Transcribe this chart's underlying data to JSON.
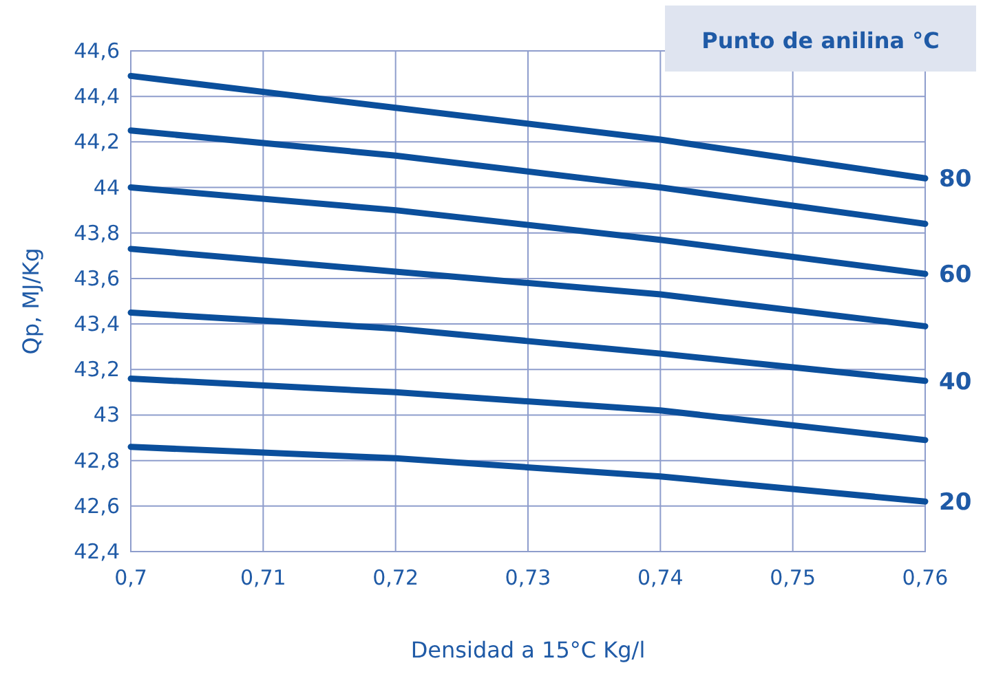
{
  "chart_data": {
    "type": "line",
    "legend_title": "Punto de anilina °C",
    "xlabel": "Densidad a 15°C Kg/l",
    "ylabel": "Qp, MJ/Kg",
    "x": [
      0.7,
      0.72,
      0.74,
      0.76
    ],
    "series": [
      {
        "name": "80",
        "color": "#0b4f9c",
        "values": [
          44.49,
          44.35,
          44.21,
          44.04
        ]
      },
      {
        "color": "#0b4f9c",
        "values": [
          44.25,
          44.14,
          44.0,
          43.84
        ]
      },
      {
        "name": "60",
        "color": "#0b4f9c",
        "values": [
          44.0,
          43.9,
          43.77,
          43.62
        ]
      },
      {
        "color": "#0b4f9c",
        "values": [
          43.73,
          43.63,
          43.53,
          43.39
        ]
      },
      {
        "name": "40",
        "color": "#0b4f9c",
        "values": [
          43.45,
          43.38,
          43.27,
          43.15
        ]
      },
      {
        "color": "#0b4f9c",
        "values": [
          43.16,
          43.1,
          43.02,
          42.89
        ]
      },
      {
        "name": "20",
        "color": "#0b4f9c",
        "values": [
          42.86,
          42.81,
          42.73,
          42.62
        ]
      }
    ],
    "xlim": [
      0.7,
      0.76
    ],
    "xticks": [
      {
        "value": 0.7,
        "label": "0,7"
      },
      {
        "value": 0.71,
        "label": "0,71"
      },
      {
        "value": 0.72,
        "label": "0,72"
      },
      {
        "value": 0.73,
        "label": "0,73"
      },
      {
        "value": 0.74,
        "label": "0,74"
      },
      {
        "value": 0.75,
        "label": "0,75"
      },
      {
        "value": 0.76,
        "label": "0,76"
      }
    ],
    "ylim": [
      42.4,
      44.6
    ],
    "yticks": [
      {
        "value": 42.4,
        "label": "42,4"
      },
      {
        "value": 42.6,
        "label": "42,6"
      },
      {
        "value": 42.8,
        "label": "42,8"
      },
      43,
      {
        "value": 43.2,
        "label": "43,2"
      },
      {
        "value": 43.4,
        "label": "43,4"
      },
      {
        "value": 43.6,
        "label": "43,6"
      },
      {
        "value": 43.8,
        "label": "43,8"
      },
      44,
      {
        "value": 44.2,
        "label": "44,2"
      },
      {
        "value": 44.4,
        "label": "44,4"
      },
      {
        "value": 44.6,
        "label": "44,6"
      }
    ],
    "grid": true,
    "line_style": "solid",
    "marker": "none"
  }
}
